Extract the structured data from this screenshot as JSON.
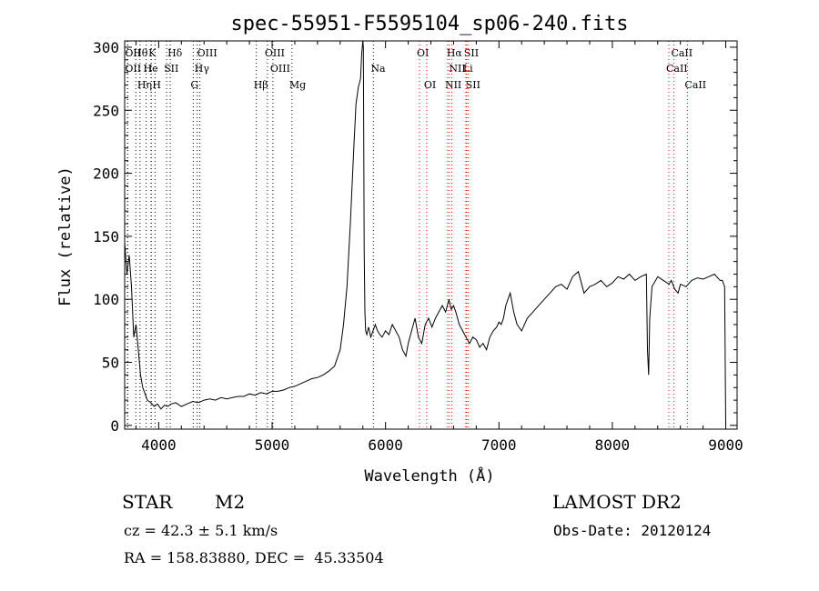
{
  "chart_data": {
    "type": "line",
    "title": "spec-55951-F5595104_sp06-240.fits",
    "xlabel": "Wavelength (Å)",
    "ylabel": "Flux (relative)",
    "xlim": [
      3700,
      9100
    ],
    "ylim": [
      -3,
      305
    ],
    "xticks": [
      4000,
      5000,
      6000,
      7000,
      8000,
      9000
    ],
    "yticks": [
      0,
      50,
      100,
      150,
      200,
      250,
      300
    ],
    "grid": false,
    "line_color": "#000000",
    "marker_color": "#000000",
    "emission_line_color": "#ff0000",
    "series": [
      {
        "x": [
          3700,
          3720,
          3740,
          3760,
          3780,
          3800,
          3820,
          3840,
          3860,
          3880,
          3900,
          3930,
          3960,
          3990,
          4020,
          4050,
          4080,
          4110,
          4150,
          4200,
          4250,
          4300,
          4350,
          4400,
          4450,
          4500,
          4550,
          4600,
          4650,
          4700,
          4750,
          4800,
          4850,
          4900,
          4950,
          5000,
          5050,
          5100,
          5150,
          5200,
          5250,
          5300,
          5350,
          5400,
          5450,
          5500,
          5550,
          5600,
          5630,
          5660,
          5690,
          5720,
          5740,
          5760,
          5780,
          5790,
          5800,
          5805,
          5808,
          5812,
          5818,
          5825,
          5835,
          5850,
          5870,
          5890,
          5910,
          5930,
          5950,
          5970,
          6000,
          6030,
          6060,
          6090,
          6120,
          6150,
          6180,
          6200,
          6230,
          6260,
          6290,
          6320,
          6350,
          6380,
          6410,
          6440,
          6470,
          6500,
          6530,
          6560,
          6580,
          6600,
          6620,
          6650,
          6680,
          6710,
          6740,
          6770,
          6800,
          6830,
          6860,
          6890,
          6920,
          6950,
          6980,
          7000,
          7020,
          7040,
          7060,
          7080,
          7100,
          7130,
          7160,
          7200,
          7250,
          7300,
          7350,
          7400,
          7450,
          7500,
          7550,
          7600,
          7650,
          7700,
          7750,
          7800,
          7850,
          7900,
          7950,
          8000,
          8050,
          8100,
          8150,
          8200,
          8250,
          8300,
          8310,
          8320,
          8330,
          8350,
          8400,
          8450,
          8500,
          8520,
          8550,
          8580,
          8600,
          8650,
          8700,
          8750,
          8800,
          8850,
          8900,
          8950,
          8970,
          8990,
          9000
        ],
        "y": [
          145,
          120,
          135,
          110,
          70,
          80,
          60,
          40,
          30,
          25,
          20,
          18,
          15,
          17,
          13,
          16,
          15,
          17,
          18,
          15,
          17,
          19,
          18,
          20,
          21,
          20,
          22,
          21,
          22,
          23,
          23,
          25,
          24,
          26,
          25,
          27,
          27,
          28,
          30,
          31,
          33,
          35,
          37,
          38,
          40,
          43,
          47,
          60,
          80,
          110,
          160,
          220,
          255,
          268,
          275,
          295,
          305,
          300,
          230,
          140,
          90,
          75,
          72,
          78,
          70,
          75,
          80,
          75,
          72,
          70,
          75,
          72,
          80,
          75,
          70,
          60,
          55,
          65,
          75,
          85,
          70,
          65,
          80,
          85,
          78,
          85,
          90,
          95,
          90,
          100,
          92,
          95,
          90,
          80,
          75,
          70,
          65,
          70,
          68,
          62,
          65,
          60,
          70,
          75,
          78,
          82,
          80,
          85,
          95,
          100,
          105,
          90,
          80,
          75,
          85,
          90,
          95,
          100,
          105,
          110,
          112,
          108,
          118,
          122,
          105,
          110,
          112,
          115,
          110,
          113,
          118,
          116,
          120,
          115,
          118,
          120,
          60,
          40,
          85,
          110,
          118,
          115,
          112,
          115,
          108,
          105,
          112,
          110,
          115,
          117,
          116,
          118,
          120,
          115,
          115,
          110,
          0
        ]
      }
    ],
    "line_markers": [
      {
        "label": "Hθ",
        "x": 3798
      },
      {
        "label": "K",
        "x": 3934
      },
      {
        "label": "Hδ",
        "x": 4102
      },
      {
        "label": "OIII",
        "x": 4363
      },
      {
        "label": "OIII",
        "x": 4959
      },
      {
        "label": "OI",
        "x": 6300
      },
      {
        "label": "Hα",
        "x": 6563
      },
      {
        "label": "SII",
        "x": 6716
      },
      {
        "label": "CaII",
        "x": 8542
      },
      {
        "label": "OII",
        "x": 3727
      },
      {
        "label": "He",
        "x": 3889
      },
      {
        "label": "I",
        "x": 3934
      },
      {
        "label": "SII",
        "x": 4070
      },
      {
        "label": "Hγ",
        "x": 4340
      },
      {
        "label": "OIII",
        "x": 5007
      },
      {
        "label": "Na",
        "x": 5893
      },
      {
        "label": "NII",
        "x": 6584
      },
      {
        "label": "Li",
        "x": 6708
      },
      {
        "label": "CaII",
        "x": 8498
      },
      {
        "label": "OII",
        "x": 3727
      },
      {
        "label": "Hη",
        "x": 3835
      },
      {
        "label": "H",
        "x": 3968
      },
      {
        "label": "G",
        "x": 4305
      },
      {
        "label": "Hβ",
        "x": 4861
      },
      {
        "label": "Mg",
        "x": 5175
      },
      {
        "label": "OI",
        "x": 6363
      },
      {
        "label": "NII",
        "x": 6548
      },
      {
        "label": "SII",
        "x": 6731
      },
      {
        "label": "CaII",
        "x": 8662
      }
    ]
  },
  "info": {
    "class_label": "STAR",
    "subclass": "M2",
    "survey": "LAMOST DR2",
    "cz": "cz = 42.3 ± 5.1 km/s",
    "obs_date": "Obs-Date: 20120124",
    "coords": "RA = 158.83880, DEC =  45.33504"
  }
}
